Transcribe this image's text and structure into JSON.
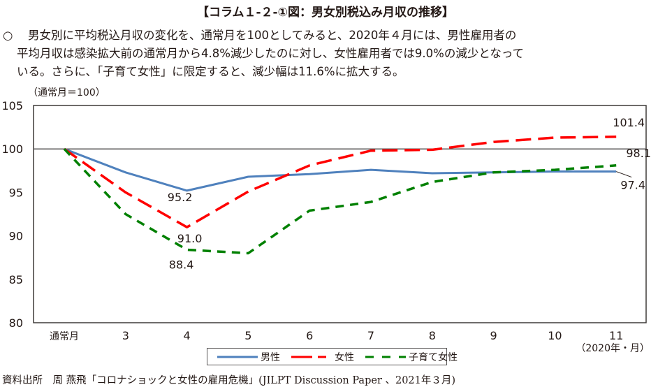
{
  "header": {
    "title": "【コラム１-２-①図：男女別税込み月収の推移】"
  },
  "summary": {
    "bullet": "○",
    "lines": [
      "男女別に平均税込月収の変化を、通常月を100としてみると、2020年４月には、男性雇用者の",
      "平均月収は感染拡大前の通常月から4.8%減少したのに対し、女性雇用者では9.0%の減少となって",
      "いる。さらに、「子育て女性」に限定すると、減少幅は11.6%に拡大する。"
    ]
  },
  "chart_data": {
    "type": "line",
    "title": "男女別税込み月収の推移",
    "ylabel": "（通常月＝100）",
    "xlabel": "（2020年・月）",
    "ylim": [
      80,
      105
    ],
    "yticks": [
      80,
      85,
      90,
      95,
      100,
      105
    ],
    "ytick_labels": [
      "80",
      "85",
      "90",
      "95",
      "100",
      "105"
    ],
    "reference_line": 100,
    "grid": false,
    "categories": [
      "通常月",
      "3",
      "4",
      "5",
      "6",
      "7",
      "8",
      "9",
      "10",
      "11"
    ],
    "series": [
      {
        "name": "男性",
        "color": "#4f81bd",
        "style": "solid",
        "values": [
          100,
          97.3,
          95.2,
          96.8,
          97.1,
          97.6,
          97.2,
          97.3,
          97.4,
          97.4
        ]
      },
      {
        "name": "女性",
        "color": "#ff0000",
        "style": "long-dash",
        "values": [
          100,
          95.0,
          91.0,
          95.1,
          98.1,
          99.8,
          99.9,
          100.8,
          101.3,
          101.4
        ]
      },
      {
        "name": "子育て女性",
        "color": "#008000",
        "style": "short-dash",
        "values": [
          100,
          92.5,
          88.4,
          88.0,
          92.9,
          93.9,
          96.2,
          97.3,
          97.6,
          98.1
        ]
      }
    ],
    "annotations": [
      {
        "series": "男性",
        "category": "4",
        "text": "95.2"
      },
      {
        "series": "女性",
        "category": "4",
        "text": "91.0"
      },
      {
        "series": "子育て女性",
        "category": "4",
        "text": "88.4"
      },
      {
        "series": "女性",
        "category": "11",
        "text": "101.4"
      },
      {
        "series": "子育て女性",
        "category": "11",
        "text": "98.1"
      },
      {
        "series": "男性",
        "category": "11",
        "text": "97.4"
      }
    ],
    "legend": {
      "position": "bottom-center",
      "entries": [
        "男性",
        "女性",
        "子育て女性"
      ]
    }
  },
  "source": "資料出所　周 燕飛「コロナショックと女性の雇用危機」(JILPT Discussion Paper 、2021年３月)"
}
